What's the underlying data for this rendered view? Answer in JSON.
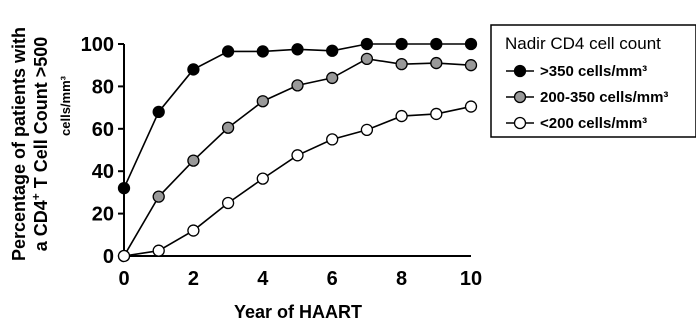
{
  "chart_data": {
    "type": "line",
    "xlabel": "Year of HAART",
    "ylabel": {
      "line1": "Percentage of patients with",
      "line2_prefix": "a CD4",
      "line2_sup": "+",
      "line2_suffix": " T Cell Count >500",
      "line3": "cells/mm³"
    },
    "xlim": [
      0,
      10
    ],
    "ylim": [
      0,
      100
    ],
    "xticks": [
      "0",
      "2",
      "4",
      "6",
      "8",
      "10"
    ],
    "yticks": [
      "0",
      "20",
      "40",
      "60",
      "80",
      "100"
    ],
    "x": [
      0,
      1,
      2,
      3,
      4,
      5,
      6,
      7,
      8,
      9,
      10
    ],
    "legend_title": "Nadir CD4 cell count",
    "legend_position": "right",
    "grid": false,
    "series": [
      {
        "name": ">350 cells/mm³",
        "marker_fill": "#000000",
        "values": [
          32,
          68,
          88,
          96.5,
          96.5,
          97.5,
          96.8,
          100,
          100,
          100,
          100
        ]
      },
      {
        "name": "200-350 cells/mm³",
        "marker_fill": "#999999",
        "values": [
          0,
          28,
          45,
          60.5,
          73,
          80.5,
          84,
          93,
          90.5,
          91,
          90
        ]
      },
      {
        "name": "<200 cells/mm³",
        "marker_fill": "#ffffff",
        "values": [
          0,
          2.5,
          12,
          25,
          36.5,
          47.5,
          55,
          59.5,
          66,
          67,
          70.5
        ]
      }
    ]
  }
}
